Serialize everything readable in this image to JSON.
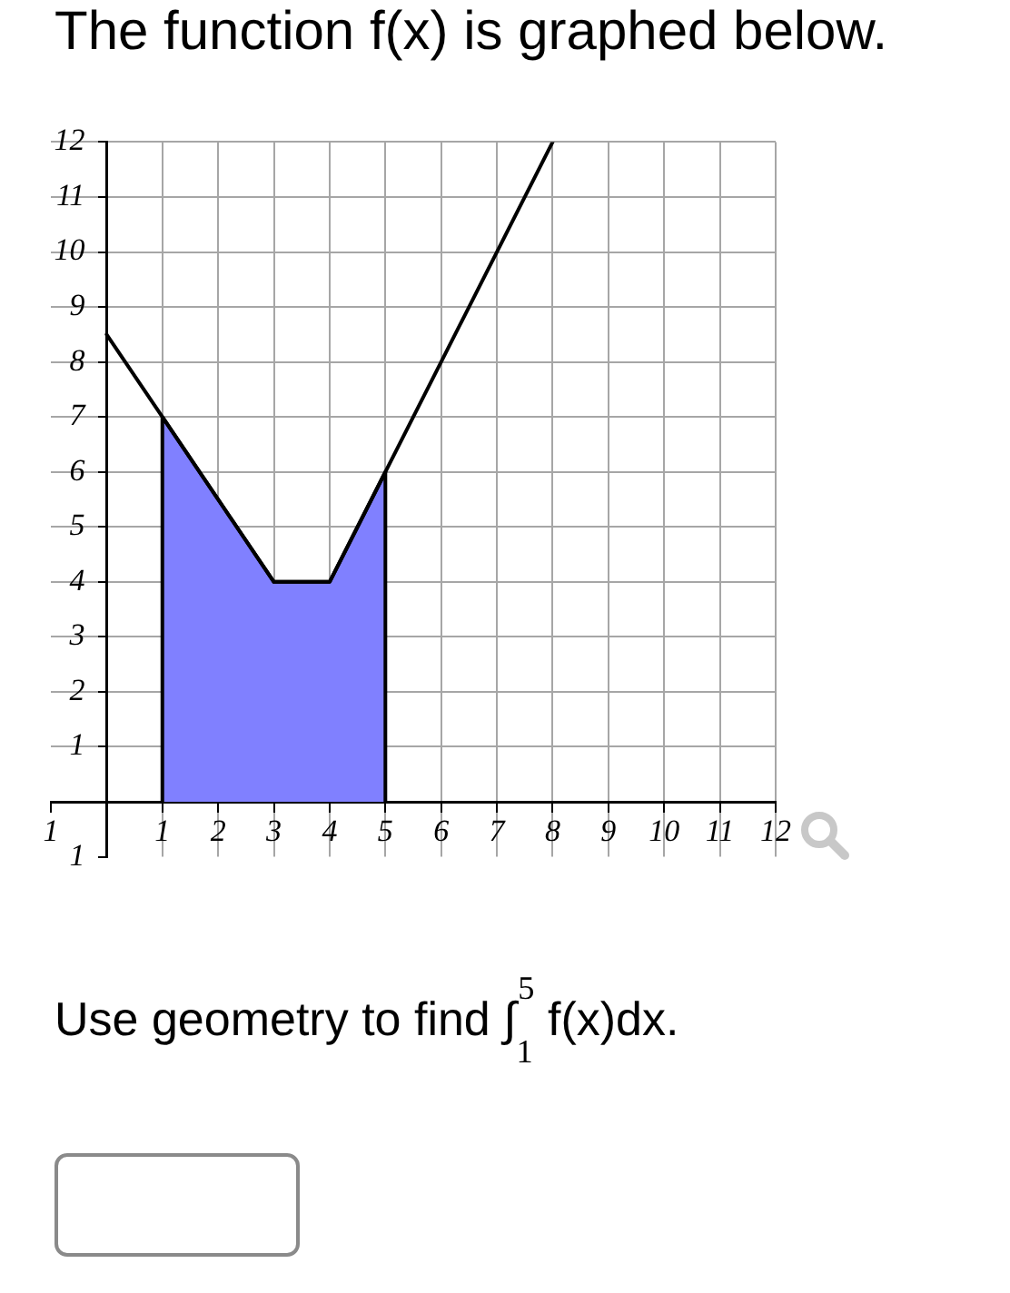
{
  "chart_data": {
    "type": "line",
    "title": "The function f(x) is graphed below.",
    "series": [
      {
        "type": "area",
        "color": "#8080ff",
        "x": [
          1,
          1,
          3,
          4,
          5,
          5
        ],
        "values": [
          0,
          7,
          4,
          4,
          6,
          0
        ]
      },
      {
        "color": "#000000",
        "x": [
          0,
          1,
          3,
          4,
          5,
          8
        ],
        "values": [
          8.5,
          7,
          4,
          4,
          6,
          12
        ]
      }
    ],
    "xlim": [
      -1,
      12
    ],
    "ylim": [
      -1,
      12
    ],
    "xticks": [
      {
        "value": -1,
        "label": "1"
      },
      1,
      2,
      3,
      4,
      5,
      6,
      7,
      8,
      9,
      10,
      11,
      12
    ],
    "yticks": [
      {
        "value": -1,
        "label": "1"
      },
      1,
      2,
      3,
      4,
      5,
      6,
      7,
      8,
      9,
      10,
      11,
      12
    ],
    "grid": true,
    "marker": "none",
    "annotations": [
      "Use geometry to find ∫$_{1}$$^{5}$ f(x)dx."
    ]
  }
}
